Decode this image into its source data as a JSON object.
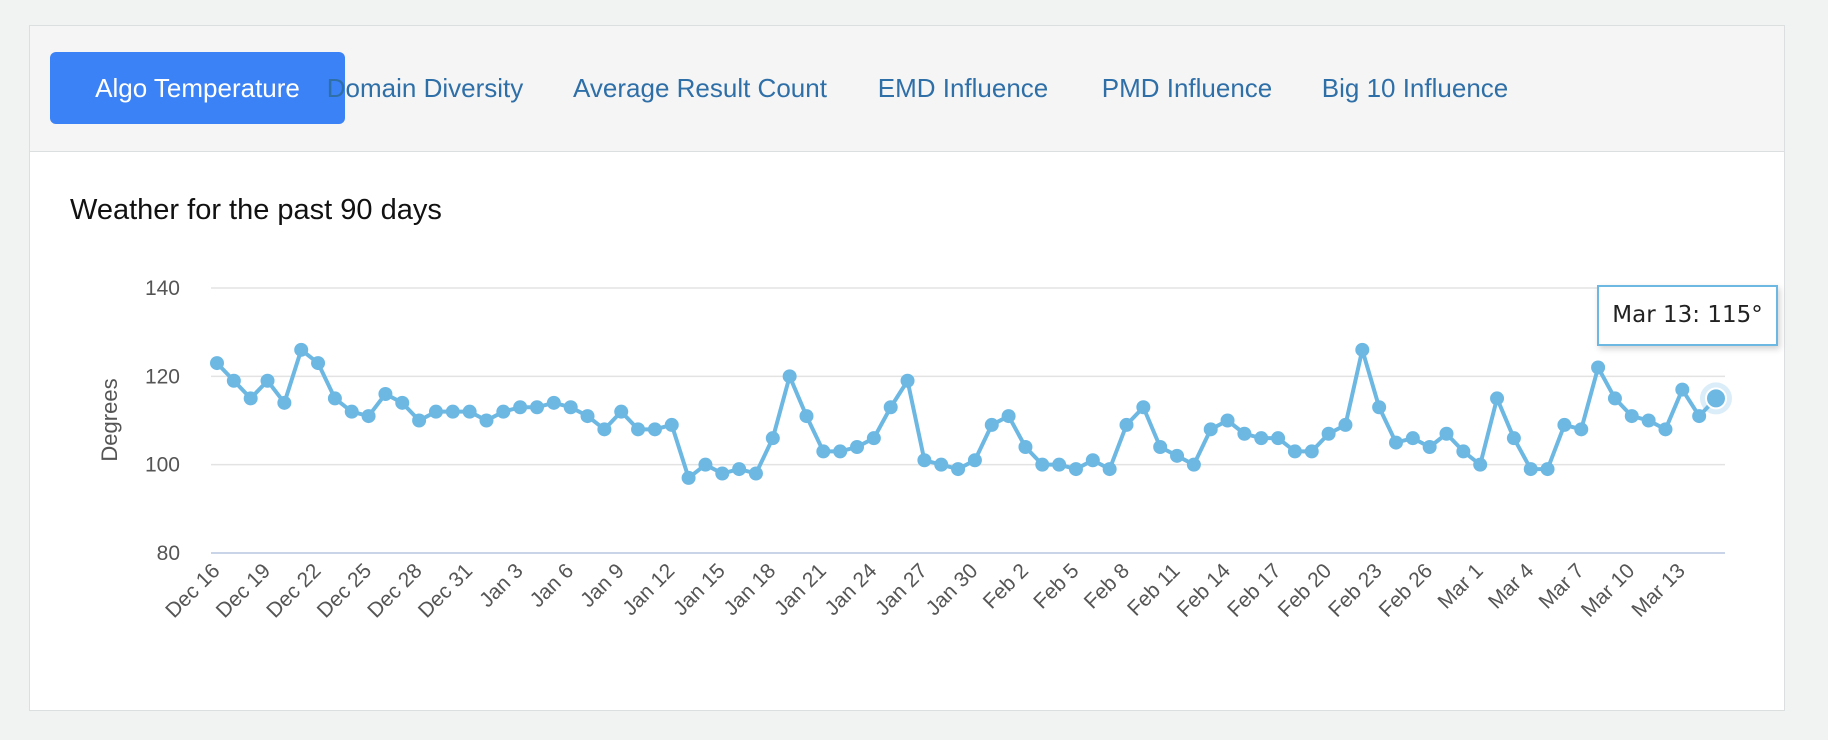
{
  "tabs": [
    {
      "label": "Algo Temperature",
      "active": true
    },
    {
      "label": "Domain Diversity",
      "active": false
    },
    {
      "label": "Average Result Count",
      "active": false
    },
    {
      "label": "EMD Influence",
      "active": false
    },
    {
      "label": "PMD Influence",
      "active": false
    },
    {
      "label": "Big 10 Influence",
      "active": false
    }
  ],
  "colors": {
    "accent": "#3b82f6",
    "tab_text": "#2f6fa8",
    "series": "#6cb8e3"
  },
  "tooltip": {
    "text": "Mar 13: 115°"
  },
  "chart_data": {
    "type": "line",
    "title": "Weather for the past 90 days",
    "ylabel": "Degrees",
    "xlabel": "",
    "ylim": [
      80,
      140
    ],
    "yticks": [
      80,
      100,
      120,
      140
    ],
    "grid": true,
    "xtick_labels": [
      "Dec 16",
      "Dec 19",
      "Dec 22",
      "Dec 25",
      "Dec 28",
      "Dec 31",
      "Jan 3",
      "Jan 6",
      "Jan 9",
      "Jan 12",
      "Jan 15",
      "Jan 18",
      "Jan 21",
      "Jan 24",
      "Jan 27",
      "Jan 30",
      "Feb 2",
      "Feb 5",
      "Feb 8",
      "Feb 11",
      "Feb 14",
      "Feb 17",
      "Feb 20",
      "Feb 23",
      "Feb 26",
      "Mar 1",
      "Mar 4",
      "Mar 7",
      "Mar 10",
      "Mar 13"
    ],
    "series": [
      {
        "values": [
          123,
          119,
          115,
          119,
          114,
          126,
          123,
          115,
          112,
          111,
          116,
          114,
          110,
          112,
          112,
          112,
          110,
          112,
          113,
          113,
          114,
          113,
          111,
          108,
          112,
          108,
          108,
          109,
          97,
          100,
          98,
          99,
          98,
          106,
          120,
          111,
          103,
          103,
          104,
          106,
          113,
          119,
          101,
          100,
          99,
          101,
          109,
          111,
          104,
          100,
          100,
          99,
          101,
          99,
          109,
          113,
          104,
          102,
          100,
          108,
          110,
          107,
          106,
          106,
          103,
          103,
          107,
          109,
          126,
          113,
          105,
          106,
          104,
          107,
          103,
          100,
          115,
          106,
          99,
          99,
          109,
          108,
          122,
          115,
          111,
          110,
          108,
          117,
          111,
          115
        ]
      }
    ],
    "highlight": {
      "label": "Mar 13",
      "value": 115
    }
  }
}
